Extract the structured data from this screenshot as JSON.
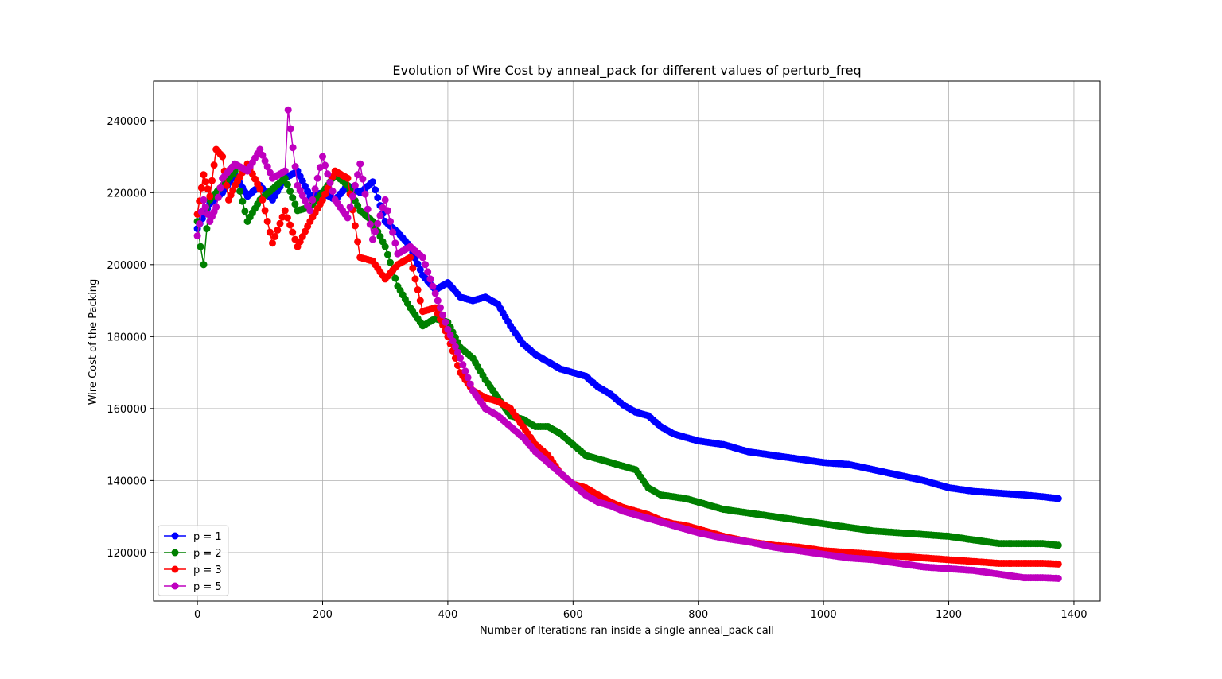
{
  "chart_data": {
    "type": "line",
    "title": "Evolution of Wire Cost by anneal_pack for different values of perturb_freq",
    "xlabel": "Number of Iterations ran inside a single anneal_pack call",
    "ylabel": "Wire Cost of the Packing",
    "xlim": [
      -70,
      1442
    ],
    "ylim": [
      106500,
      251000
    ],
    "xticks": [
      0,
      200,
      400,
      600,
      800,
      1000,
      1200,
      1400
    ],
    "xtick_labels": [
      "0",
      "200",
      "400",
      "600",
      "800",
      "1000",
      "1200",
      "1400"
    ],
    "yticks": [
      120000,
      140000,
      160000,
      180000,
      200000,
      220000,
      240000
    ],
    "ytick_labels": [
      "120000",
      "140000",
      "160000",
      "180000",
      "200000",
      "220000",
      "240000"
    ],
    "grid": true,
    "legend_position": "lower-left",
    "marker": "circle",
    "series": [
      {
        "name": "p = 1",
        "color": "#0000ff",
        "x": [
          0,
          20,
          40,
          60,
          80,
          100,
          120,
          140,
          160,
          180,
          200,
          220,
          240,
          260,
          280,
          300,
          320,
          340,
          360,
          380,
          400,
          420,
          440,
          460,
          480,
          500,
          520,
          540,
          560,
          580,
          600,
          620,
          640,
          660,
          680,
          700,
          720,
          740,
          760,
          780,
          800,
          840,
          880,
          920,
          960,
          1000,
          1040,
          1080,
          1120,
          1160,
          1200,
          1240,
          1280,
          1320,
          1350,
          1375
        ],
        "y": [
          210000,
          217000,
          220000,
          225000,
          219000,
          222000,
          218000,
          224000,
          226000,
          219000,
          220000,
          218000,
          222000,
          220000,
          223000,
          212000,
          209000,
          205000,
          197000,
          193000,
          195000,
          191000,
          190000,
          191000,
          189000,
          183000,
          178000,
          175000,
          173000,
          171000,
          170000,
          169000,
          166000,
          164000,
          161000,
          159000,
          158000,
          155000,
          153000,
          152000,
          151000,
          150000,
          148000,
          147000,
          146000,
          145000,
          144500,
          143000,
          141500,
          140000,
          138000,
          137000,
          136500,
          136000,
          135500,
          135000
        ]
      },
      {
        "name": "p = 2",
        "color": "#008000",
        "x": [
          0,
          5,
          10,
          15,
          20,
          40,
          60,
          80,
          100,
          120,
          140,
          160,
          180,
          200,
          220,
          240,
          260,
          280,
          300,
          320,
          340,
          360,
          380,
          400,
          420,
          440,
          460,
          480,
          500,
          520,
          540,
          560,
          580,
          600,
          620,
          640,
          660,
          680,
          700,
          720,
          740,
          760,
          780,
          800,
          840,
          880,
          920,
          960,
          1000,
          1040,
          1080,
          1120,
          1160,
          1200,
          1240,
          1280,
          1320,
          1350,
          1375
        ],
        "y": [
          212000,
          205000,
          200000,
          210000,
          218000,
          222000,
          226000,
          212000,
          218000,
          221000,
          224000,
          215000,
          216000,
          220000,
          225000,
          222000,
          215000,
          212000,
          205000,
          194000,
          188000,
          183000,
          185000,
          184000,
          177000,
          174000,
          168000,
          163000,
          158000,
          157000,
          155000,
          155000,
          153000,
          150000,
          147000,
          146000,
          145000,
          144000,
          143000,
          138000,
          136000,
          135500,
          135000,
          134000,
          132000,
          131000,
          130000,
          129000,
          128000,
          127000,
          126000,
          125500,
          125000,
          124500,
          123500,
          122500,
          122500,
          122500,
          122000
        ]
      },
      {
        "name": "p = 3",
        "color": "#ff0000",
        "x": [
          0,
          10,
          20,
          30,
          40,
          50,
          60,
          80,
          100,
          120,
          140,
          160,
          180,
          200,
          220,
          240,
          260,
          280,
          300,
          320,
          340,
          360,
          380,
          400,
          420,
          440,
          460,
          480,
          500,
          520,
          540,
          560,
          580,
          600,
          620,
          640,
          660,
          680,
          700,
          720,
          740,
          760,
          780,
          800,
          840,
          880,
          920,
          960,
          1000,
          1040,
          1080,
          1120,
          1160,
          1200,
          1240,
          1280,
          1320,
          1350,
          1375
        ],
        "y": [
          214000,
          225000,
          219000,
          232000,
          230000,
          218000,
          222000,
          228000,
          221000,
          206000,
          215000,
          205000,
          212000,
          218000,
          226000,
          224000,
          202000,
          201000,
          196000,
          200000,
          202000,
          187000,
          188000,
          180000,
          170000,
          165000,
          163000,
          162000,
          160000,
          155000,
          150000,
          147000,
          142000,
          139000,
          138000,
          136000,
          134000,
          132500,
          131500,
          130500,
          129000,
          128000,
          127500,
          126500,
          124500,
          123000,
          122000,
          121500,
          120500,
          120000,
          119500,
          119000,
          118500,
          118000,
          117500,
          117000,
          117000,
          117000,
          116800
        ]
      },
      {
        "name": "p = 5",
        "color": "#bf00bf",
        "x": [
          0,
          10,
          20,
          30,
          40,
          60,
          80,
          100,
          120,
          140,
          145,
          160,
          180,
          200,
          220,
          240,
          260,
          280,
          300,
          320,
          340,
          360,
          380,
          400,
          420,
          440,
          460,
          480,
          500,
          520,
          540,
          560,
          580,
          600,
          620,
          640,
          660,
          680,
          700,
          720,
          740,
          760,
          780,
          800,
          840,
          880,
          920,
          960,
          1000,
          1040,
          1080,
          1120,
          1160,
          1200,
          1240,
          1280,
          1320,
          1350,
          1375
        ],
        "y": [
          208000,
          218000,
          212000,
          216000,
          224000,
          228000,
          226000,
          232000,
          224000,
          226000,
          243000,
          222000,
          215000,
          230000,
          218000,
          213000,
          228000,
          207000,
          218000,
          203000,
          205000,
          202000,
          192000,
          182000,
          174000,
          165000,
          160000,
          158000,
          155000,
          152000,
          148000,
          145000,
          142000,
          139000,
          136000,
          134000,
          133000,
          131500,
          130500,
          129500,
          128500,
          127500,
          126500,
          125500,
          124000,
          123000,
          121500,
          120500,
          119500,
          118500,
          118000,
          117000,
          116000,
          115500,
          115000,
          114000,
          113000,
          113000,
          112800
        ]
      }
    ]
  }
}
